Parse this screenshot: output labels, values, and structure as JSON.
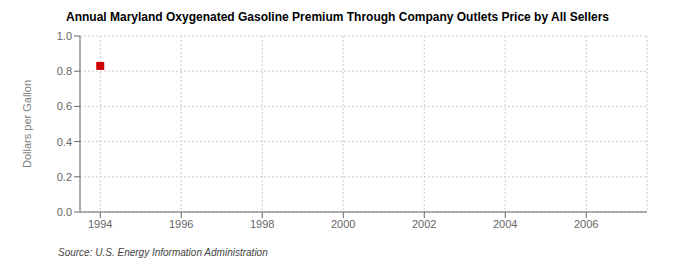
{
  "chart_data": {
    "type": "scatter",
    "title": "Annual Maryland Oxygenated Gasoline Premium Through Company Outlets Price by All Sellers",
    "ylabel": "Dollars per Gallon",
    "annotations": [
      "Source: U.S. Energy Information Administration"
    ],
    "x": [
      1994
    ],
    "values": [
      0.83
    ],
    "color": "#cc0000",
    "marker": "square",
    "xlim": [
      1993.5,
      2007.5
    ],
    "ylim": [
      0.0,
      1.0
    ],
    "xticks": [
      1994,
      1996,
      1998,
      2000,
      2002,
      2004,
      2006
    ],
    "yticks": [
      {
        "value": 0.0,
        "label": "0.0"
      },
      0.2,
      0.4,
      0.6,
      0.8,
      {
        "value": 1.0,
        "label": "1.0"
      }
    ],
    "grid": true
  }
}
